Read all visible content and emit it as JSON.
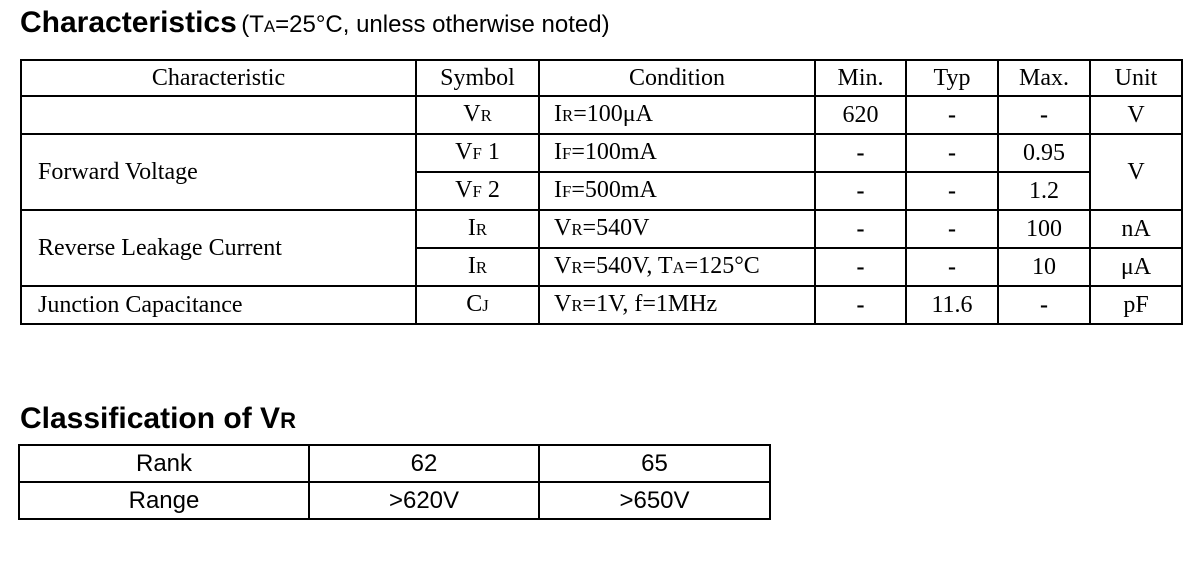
{
  "heading": {
    "title": "Characteristics",
    "cond_prefix": "(T",
    "cond_sub": "A",
    "cond_suffix": "=25°C, unless otherwise noted)"
  },
  "characteristics": {
    "headers": {
      "characteristic": "Characteristic",
      "symbol": "Symbol",
      "condition": "Condition",
      "min": "Min.",
      "typ": "Typ",
      "max": "Max.",
      "unit": "Unit"
    },
    "rows": [
      {
        "characteristic": "",
        "symbol_main": "V",
        "symbol_sub": "R",
        "symbol_suffix": "",
        "cond": [
          {
            "t": "I"
          },
          {
            "s": "R"
          },
          {
            "t": "=100μA"
          }
        ],
        "min": "620",
        "typ": "-",
        "max": "-",
        "unit": "V"
      },
      {
        "characteristic": "Forward Voltage",
        "symbol_main": "V",
        "symbol_sub": "F",
        "symbol_suffix": " 1",
        "cond": [
          {
            "t": "I"
          },
          {
            "s": "F"
          },
          {
            "t": "=100mA"
          }
        ],
        "min": "-",
        "typ": "-",
        "max": "0.95",
        "unit": "V"
      },
      {
        "characteristic": "",
        "symbol_main": "V",
        "symbol_sub": "F",
        "symbol_suffix": " 2",
        "cond": [
          {
            "t": "I"
          },
          {
            "s": "F"
          },
          {
            "t": "=500mA"
          }
        ],
        "min": "-",
        "typ": "-",
        "max": "1.2",
        "unit": ""
      },
      {
        "characteristic": "Reverse Leakage Current",
        "symbol_main": "I",
        "symbol_sub": "R",
        "symbol_suffix": "",
        "cond": [
          {
            "t": "V"
          },
          {
            "s": "R"
          },
          {
            "t": "=540V"
          }
        ],
        "min": "-",
        "typ": "-",
        "max": "100",
        "unit": "nA"
      },
      {
        "characteristic": "",
        "symbol_main": "I",
        "symbol_sub": "R",
        "symbol_suffix": "",
        "cond": [
          {
            "t": "V"
          },
          {
            "s": "R"
          },
          {
            "t": "=540V, T"
          },
          {
            "s": "A"
          },
          {
            "t": "=125°C"
          }
        ],
        "min": "-",
        "typ": "-",
        "max": "10",
        "unit": "μA"
      },
      {
        "characteristic": "Junction Capacitance",
        "symbol_main": "C",
        "symbol_sub": "J",
        "symbol_suffix": "",
        "cond": [
          {
            "t": "V"
          },
          {
            "s": "R"
          },
          {
            "t": "=1V, f=1MHz"
          }
        ],
        "min": "-",
        "typ": "11.6",
        "max": "-",
        "unit": "pF"
      }
    ]
  },
  "classification": {
    "title_prefix": "Classification of V",
    "title_sub": "R",
    "rank_label": "Rank",
    "range_label": "Range",
    "ranks": [
      "62",
      "65"
    ],
    "ranges": [
      ">620V",
      ">650V"
    ]
  }
}
